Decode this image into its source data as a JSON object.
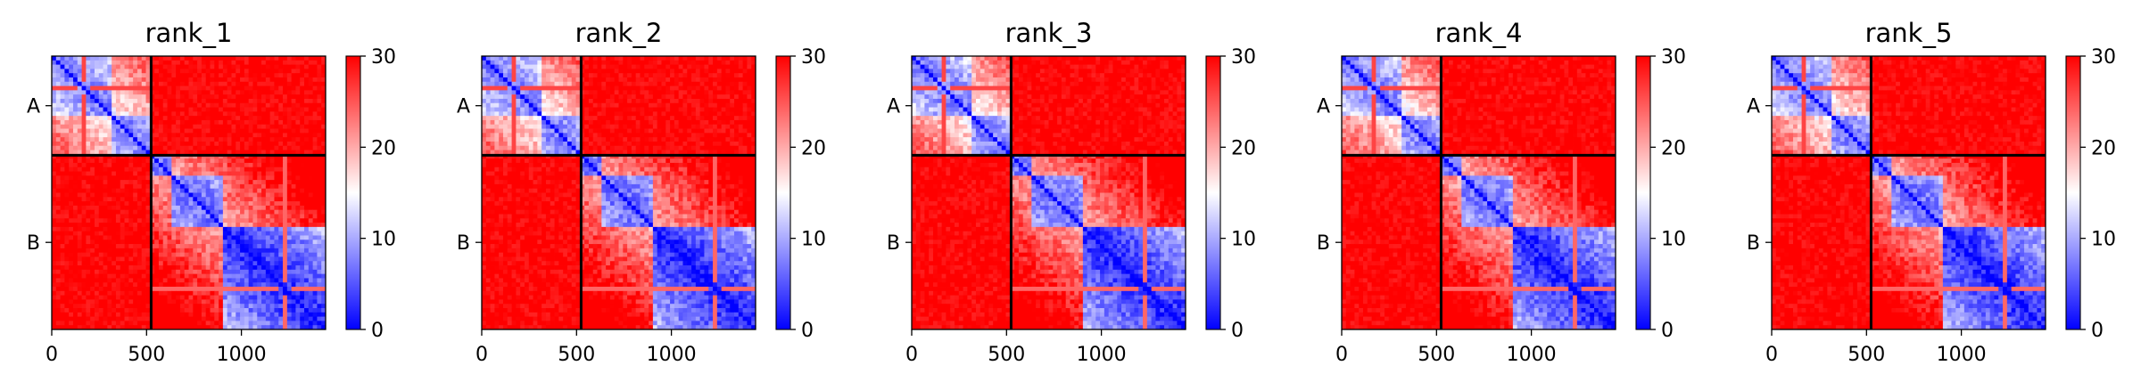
{
  "chart_data": [
    {
      "type": "heatmap",
      "title": "rank_1",
      "xlabel": "",
      "ylabel": "",
      "x_ticks": [
        0,
        500,
        1000
      ],
      "xlim": [
        0,
        1444
      ],
      "y_tick_labels": [
        "A",
        "B"
      ],
      "chain_boundary": 524,
      "colorbar": {
        "ticks": [
          0,
          10,
          20,
          30
        ],
        "range": [
          0,
          30
        ],
        "colormap": "bwr"
      },
      "matrix_summary": {
        "intra_chain_A": "low (blue)",
        "intra_chain_B": "low (blue)",
        "inter_chain": "high (red, 30)"
      }
    },
    {
      "type": "heatmap",
      "title": "rank_2",
      "xlabel": "",
      "ylabel": "",
      "x_ticks": [
        0,
        500,
        1000
      ],
      "xlim": [
        0,
        1444
      ],
      "y_tick_labels": [
        "A",
        "B"
      ],
      "chain_boundary": 524,
      "colorbar": {
        "ticks": [
          0,
          10,
          20,
          30
        ],
        "range": [
          0,
          30
        ],
        "colormap": "bwr"
      },
      "matrix_summary": {
        "intra_chain_A": "low (blue)",
        "intra_chain_B": "low (blue)",
        "inter_chain": "high (red, 30)"
      }
    },
    {
      "type": "heatmap",
      "title": "rank_3",
      "xlabel": "",
      "ylabel": "",
      "x_ticks": [
        0,
        500,
        1000
      ],
      "xlim": [
        0,
        1444
      ],
      "y_tick_labels": [
        "A",
        "B"
      ],
      "chain_boundary": 524,
      "colorbar": {
        "ticks": [
          0,
          10,
          20,
          30
        ],
        "range": [
          0,
          30
        ],
        "colormap": "bwr"
      },
      "matrix_summary": {
        "intra_chain_A": "low (blue)",
        "intra_chain_B": "low (blue)",
        "inter_chain": "high (red, 30)"
      }
    },
    {
      "type": "heatmap",
      "title": "rank_4",
      "xlabel": "",
      "ylabel": "",
      "x_ticks": [
        0,
        500,
        1000
      ],
      "xlim": [
        0,
        1444
      ],
      "y_tick_labels": [
        "A",
        "B"
      ],
      "chain_boundary": 524,
      "colorbar": {
        "ticks": [
          0,
          10,
          20,
          30
        ],
        "range": [
          0,
          30
        ],
        "colormap": "bwr"
      },
      "matrix_summary": {
        "intra_chain_A": "low (blue)",
        "intra_chain_B": "low (blue)",
        "inter_chain": "high (red, 30)"
      }
    },
    {
      "type": "heatmap",
      "title": "rank_5",
      "xlabel": "",
      "ylabel": "",
      "x_ticks": [
        0,
        500,
        1000
      ],
      "xlim": [
        0,
        1444
      ],
      "y_tick_labels": [
        "A",
        "B"
      ],
      "chain_boundary": 524,
      "colorbar": {
        "ticks": [
          0,
          10,
          20,
          30
        ],
        "range": [
          0,
          30
        ],
        "colormap": "bwr"
      },
      "matrix_summary": {
        "intra_chain_A": "low (blue)",
        "intra_chain_B": "low (blue)",
        "inter_chain": "high (red, 30)"
      }
    }
  ],
  "colors": {
    "low": "#0000ff",
    "mid": "#ffffff",
    "high": "#ff0000",
    "line": "#000000"
  }
}
